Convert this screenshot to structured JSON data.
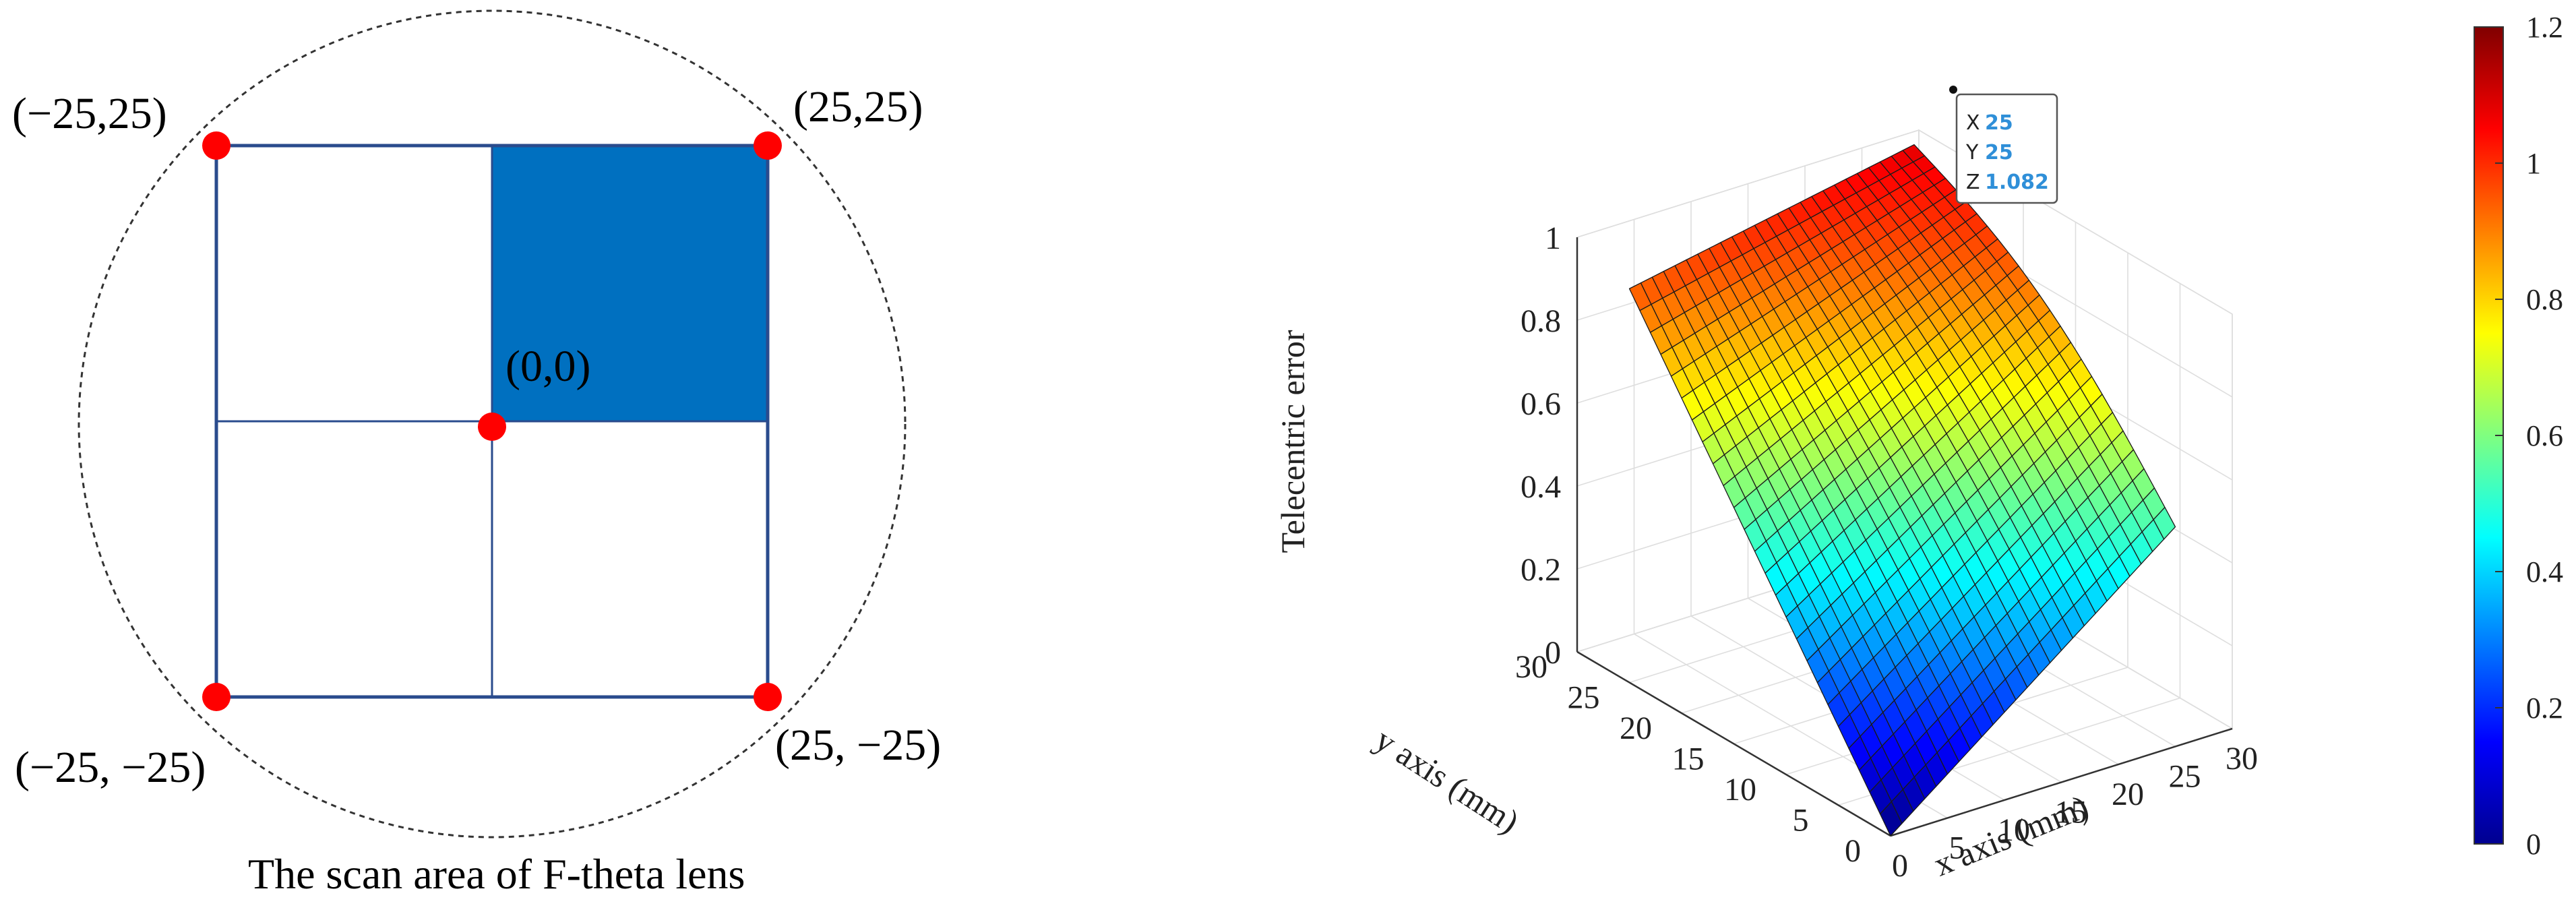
{
  "scan_diagram": {
    "caption": "The scan area of F-theta lens",
    "corner_labels": {
      "top_left": "(−25,25)",
      "top_right": "(25,25)",
      "bottom_left": "(−25, −25)",
      "bottom_right": "(25, −25)",
      "center": "(0,0)"
    },
    "colors": {
      "square_border": "#2a4b8d",
      "quadrant_fill": "#0070c0",
      "point": "#ff0000",
      "circle": "#333333"
    }
  },
  "chart_data": {
    "type": "surface",
    "zlabel": "Telecentric error",
    "xlabel": "x axis (mm)",
    "ylabel": "y axis (mm)",
    "xlim": [
      0,
      30
    ],
    "ylim": [
      0,
      30
    ],
    "zlim": [
      0,
      1
    ],
    "x_range": [
      0,
      25
    ],
    "y_range": [
      0,
      25
    ],
    "x_ticks": [
      "0",
      "5",
      "10",
      "15",
      "20",
      "25",
      "30"
    ],
    "y_ticks": [
      "0",
      "5",
      "10",
      "15",
      "20",
      "25",
      "30"
    ],
    "z_ticks": [
      "0",
      "0.2",
      "0.4",
      "0.6",
      "0.8",
      "1"
    ],
    "surface_samples": {
      "x": [
        0,
        25
      ],
      "y": [
        0,
        25
      ],
      "z": [
        [
          0.0,
          0.53
        ],
        [
          0.95,
          1.082
        ]
      ]
    },
    "colorbar": {
      "colormap": "jet",
      "range": [
        0,
        1.2
      ],
      "ticks": [
        "0",
        "0.2",
        "0.4",
        "0.6",
        "0.8",
        "1",
        "1.2"
      ]
    },
    "datatip": {
      "x_label": "X",
      "x_value": "25",
      "y_label": "Y",
      "y_value": "25",
      "z_label": "Z",
      "z_value": "1.082"
    },
    "grid": true
  }
}
